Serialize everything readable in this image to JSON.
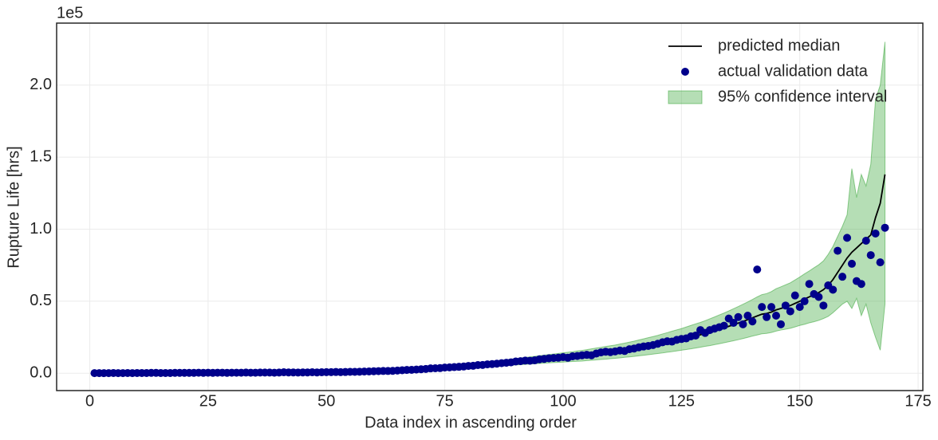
{
  "chart_data": {
    "type": "line",
    "xlabel": "Data index in ascending order",
    "ylabel": "Rupture Life [hrs]",
    "y_offset_label": "1e5",
    "xlim": [
      -7,
      176
    ],
    "xticks": [
      0,
      25,
      50,
      75,
      100,
      125,
      150,
      175
    ],
    "ylim": [
      -0.12,
      2.43
    ],
    "yticks": [
      {
        "value": 0,
        "label": "0.0"
      },
      0.5,
      {
        "value": 1,
        "label": "1.0"
      },
      1.5,
      {
        "value": 2,
        "label": "2.0"
      }
    ],
    "grid": true,
    "legend": "upper right",
    "x": [
      1,
      2,
      3,
      4,
      5,
      6,
      7,
      8,
      9,
      10,
      11,
      12,
      13,
      14,
      15,
      16,
      17,
      18,
      19,
      20,
      21,
      22,
      23,
      24,
      25,
      26,
      27,
      28,
      29,
      30,
      31,
      32,
      33,
      34,
      35,
      36,
      37,
      38,
      39,
      40,
      41,
      42,
      43,
      44,
      45,
      46,
      47,
      48,
      49,
      50,
      51,
      52,
      53,
      54,
      55,
      56,
      57,
      58,
      59,
      60,
      61,
      62,
      63,
      64,
      65,
      66,
      67,
      68,
      69,
      70,
      71,
      72,
      73,
      74,
      75,
      76,
      77,
      78,
      79,
      80,
      81,
      82,
      83,
      84,
      85,
      86,
      87,
      88,
      89,
      90,
      91,
      92,
      93,
      94,
      95,
      96,
      97,
      98,
      99,
      100,
      101,
      102,
      103,
      104,
      105,
      106,
      107,
      108,
      109,
      110,
      111,
      112,
      113,
      114,
      115,
      116,
      117,
      118,
      119,
      120,
      121,
      122,
      123,
      124,
      125,
      126,
      127,
      128,
      129,
      130,
      131,
      132,
      133,
      134,
      135,
      136,
      137,
      138,
      139,
      140,
      141,
      142,
      143,
      144,
      145,
      146,
      147,
      148,
      149,
      150,
      151,
      152,
      153,
      154,
      155,
      156,
      157,
      158,
      159,
      160,
      161,
      162,
      163,
      164,
      165,
      166,
      167,
      168
    ],
    "series": [
      {
        "name": "predicted median",
        "kind": "line",
        "color": "#000000",
        "values": [
          0.001,
          0.001,
          0.001,
          0.001,
          0.001,
          0.001,
          0.001,
          0.001,
          0.001,
          0.001,
          0.002,
          0.002,
          0.002,
          0.002,
          0.002,
          0.002,
          0.002,
          0.002,
          0.002,
          0.002,
          0.003,
          0.003,
          0.003,
          0.003,
          0.003,
          0.003,
          0.003,
          0.003,
          0.003,
          0.003,
          0.004,
          0.004,
          0.004,
          0.004,
          0.004,
          0.004,
          0.004,
          0.004,
          0.004,
          0.004,
          0.006,
          0.006,
          0.006,
          0.006,
          0.006,
          0.006,
          0.006,
          0.006,
          0.006,
          0.006,
          0.008,
          0.008,
          0.009,
          0.009,
          0.01,
          0.01,
          0.011,
          0.012,
          0.013,
          0.014,
          0.015,
          0.016,
          0.017,
          0.018,
          0.02,
          0.021,
          0.023,
          0.025,
          0.027,
          0.029,
          0.031,
          0.033,
          0.035,
          0.037,
          0.039,
          0.041,
          0.043,
          0.045,
          0.048,
          0.05,
          0.053,
          0.056,
          0.059,
          0.062,
          0.065,
          0.068,
          0.071,
          0.074,
          0.077,
          0.08,
          0.083,
          0.086,
          0.089,
          0.092,
          0.095,
          0.098,
          0.101,
          0.104,
          0.107,
          0.11,
          0.113,
          0.116,
          0.119,
          0.122,
          0.126,
          0.13,
          0.134,
          0.138,
          0.142,
          0.146,
          0.15,
          0.155,
          0.16,
          0.165,
          0.17,
          0.176,
          0.182,
          0.188,
          0.194,
          0.2,
          0.207,
          0.214,
          0.221,
          0.228,
          0.235,
          0.243,
          0.251,
          0.259,
          0.267,
          0.276,
          0.285,
          0.295,
          0.305,
          0.315,
          0.326,
          0.337,
          0.348,
          0.36,
          0.372,
          0.385,
          0.398,
          0.41,
          0.415,
          0.425,
          0.44,
          0.45,
          0.46,
          0.47,
          0.485,
          0.5,
          0.515,
          0.53,
          0.545,
          0.56,
          0.58,
          0.61,
          0.65,
          0.7,
          0.75,
          0.8,
          0.84,
          0.87,
          0.9,
          0.93,
          0.96,
          1.08,
          1.18,
          1.38
        ]
      },
      {
        "name": "actual validation data",
        "kind": "scatter",
        "color": "#00008b",
        "values": [
          0.001,
          0.001,
          0.001,
          0.001,
          0.002,
          0.001,
          0.001,
          0.002,
          0.001,
          0.002,
          0.002,
          0.002,
          0.003,
          0.003,
          0.002,
          0.002,
          0.002,
          0.003,
          0.003,
          0.003,
          0.003,
          0.003,
          0.004,
          0.003,
          0.004,
          0.003,
          0.004,
          0.004,
          0.003,
          0.004,
          0.004,
          0.004,
          0.005,
          0.004,
          0.004,
          0.005,
          0.005,
          0.005,
          0.004,
          0.005,
          0.007,
          0.006,
          0.006,
          0.005,
          0.006,
          0.006,
          0.007,
          0.006,
          0.007,
          0.008,
          0.008,
          0.009,
          0.008,
          0.009,
          0.01,
          0.01,
          0.011,
          0.012,
          0.013,
          0.014,
          0.015,
          0.016,
          0.016,
          0.017,
          0.019,
          0.021,
          0.023,
          0.024,
          0.026,
          0.028,
          0.03,
          0.034,
          0.035,
          0.036,
          0.04,
          0.041,
          0.043,
          0.045,
          0.047,
          0.051,
          0.052,
          0.057,
          0.058,
          0.062,
          0.064,
          0.067,
          0.07,
          0.073,
          0.076,
          0.082,
          0.084,
          0.088,
          0.087,
          0.09,
          0.097,
          0.1,
          0.104,
          0.106,
          0.108,
          0.112,
          0.108,
          0.118,
          0.12,
          0.125,
          0.128,
          0.125,
          0.137,
          0.145,
          0.15,
          0.147,
          0.152,
          0.158,
          0.155,
          0.167,
          0.172,
          0.18,
          0.186,
          0.19,
          0.196,
          0.205,
          0.215,
          0.222,
          0.22,
          0.232,
          0.238,
          0.242,
          0.256,
          0.262,
          0.3,
          0.28,
          0.3,
          0.31,
          0.32,
          0.33,
          0.38,
          0.35,
          0.39,
          0.34,
          0.4,
          0.36,
          0.72,
          0.46,
          0.39,
          0.46,
          0.4,
          0.34,
          0.47,
          0.43,
          0.54,
          0.46,
          0.5,
          0.62,
          0.55,
          0.53,
          0.47,
          0.61,
          0.58,
          0.85,
          0.67,
          0.94,
          0.76,
          0.64,
          0.62,
          0.92,
          0.82,
          0.97,
          0.77,
          1.01
        ]
      },
      {
        "name": "95% confidence interval",
        "kind": "band",
        "color": "#2ca02c",
        "lower": [
          -0.001,
          -0.001,
          -0.001,
          -0.001,
          -0.001,
          -0.001,
          -0.001,
          -0.001,
          -0.001,
          -0.001,
          0.0,
          0.0,
          0.0,
          0.0,
          0.0,
          0.0,
          0.0,
          0.0,
          0.0,
          0.0,
          0.001,
          0.001,
          0.001,
          0.001,
          0.001,
          0.001,
          0.001,
          0.001,
          0.001,
          0.001,
          0.002,
          0.002,
          0.002,
          0.002,
          0.002,
          0.002,
          0.002,
          0.002,
          0.002,
          0.002,
          0.003,
          0.003,
          0.003,
          0.003,
          0.003,
          0.003,
          0.003,
          0.003,
          0.003,
          0.003,
          0.005,
          0.005,
          0.006,
          0.006,
          0.007,
          0.007,
          0.008,
          0.009,
          0.009,
          0.01,
          0.011,
          0.012,
          0.012,
          0.013,
          0.015,
          0.016,
          0.017,
          0.019,
          0.02,
          0.022,
          0.023,
          0.025,
          0.026,
          0.028,
          0.029,
          0.031,
          0.032,
          0.034,
          0.036,
          0.037,
          0.04,
          0.042,
          0.044,
          0.046,
          0.048,
          0.05,
          0.052,
          0.054,
          0.056,
          0.058,
          0.06,
          0.062,
          0.064,
          0.066,
          0.068,
          0.07,
          0.072,
          0.074,
          0.076,
          0.078,
          0.08,
          0.082,
          0.083,
          0.085,
          0.088,
          0.09,
          0.093,
          0.096,
          0.098,
          0.101,
          0.104,
          0.107,
          0.111,
          0.114,
          0.117,
          0.121,
          0.125,
          0.129,
          0.133,
          0.137,
          0.141,
          0.146,
          0.15,
          0.155,
          0.16,
          0.165,
          0.17,
          0.175,
          0.181,
          0.187,
          0.192,
          0.199,
          0.205,
          0.212,
          0.219,
          0.226,
          0.233,
          0.241,
          0.249,
          0.258,
          0.266,
          0.274,
          0.277,
          0.283,
          0.293,
          0.3,
          0.306,
          0.312,
          0.322,
          0.332,
          0.34,
          0.35,
          0.358,
          0.367,
          0.38,
          0.395,
          0.42,
          0.45,
          0.48,
          0.5,
          0.45,
          0.52,
          0.4,
          0.48,
          0.35,
          0.25,
          0.16,
          0.48
        ],
        "upper": [
          0.003,
          0.003,
          0.003,
          0.003,
          0.003,
          0.003,
          0.003,
          0.003,
          0.003,
          0.003,
          0.004,
          0.004,
          0.004,
          0.004,
          0.004,
          0.004,
          0.004,
          0.004,
          0.004,
          0.004,
          0.005,
          0.005,
          0.005,
          0.005,
          0.005,
          0.005,
          0.005,
          0.005,
          0.005,
          0.005,
          0.006,
          0.006,
          0.006,
          0.006,
          0.006,
          0.006,
          0.006,
          0.006,
          0.006,
          0.006,
          0.009,
          0.009,
          0.009,
          0.009,
          0.009,
          0.009,
          0.009,
          0.009,
          0.009,
          0.009,
          0.011,
          0.011,
          0.012,
          0.012,
          0.013,
          0.013,
          0.014,
          0.015,
          0.017,
          0.018,
          0.019,
          0.02,
          0.022,
          0.023,
          0.025,
          0.026,
          0.029,
          0.031,
          0.034,
          0.036,
          0.039,
          0.041,
          0.044,
          0.046,
          0.049,
          0.051,
          0.054,
          0.056,
          0.06,
          0.063,
          0.066,
          0.07,
          0.074,
          0.078,
          0.082,
          0.086,
          0.09,
          0.094,
          0.098,
          0.102,
          0.106,
          0.11,
          0.114,
          0.118,
          0.122,
          0.126,
          0.13,
          0.134,
          0.138,
          0.142,
          0.146,
          0.15,
          0.155,
          0.159,
          0.164,
          0.17,
          0.175,
          0.18,
          0.186,
          0.191,
          0.196,
          0.203,
          0.209,
          0.216,
          0.223,
          0.231,
          0.239,
          0.247,
          0.255,
          0.263,
          0.273,
          0.282,
          0.292,
          0.301,
          0.31,
          0.321,
          0.332,
          0.343,
          0.353,
          0.365,
          0.378,
          0.391,
          0.405,
          0.418,
          0.433,
          0.448,
          0.463,
          0.479,
          0.495,
          0.512,
          0.53,
          0.546,
          0.553,
          0.567,
          0.587,
          0.6,
          0.614,
          0.628,
          0.648,
          0.668,
          0.69,
          0.71,
          0.732,
          0.753,
          0.78,
          0.825,
          0.88,
          0.95,
          1.02,
          1.1,
          1.42,
          1.22,
          1.38,
          1.3,
          1.45,
          1.9,
          2.0,
          2.3
        ]
      }
    ]
  }
}
